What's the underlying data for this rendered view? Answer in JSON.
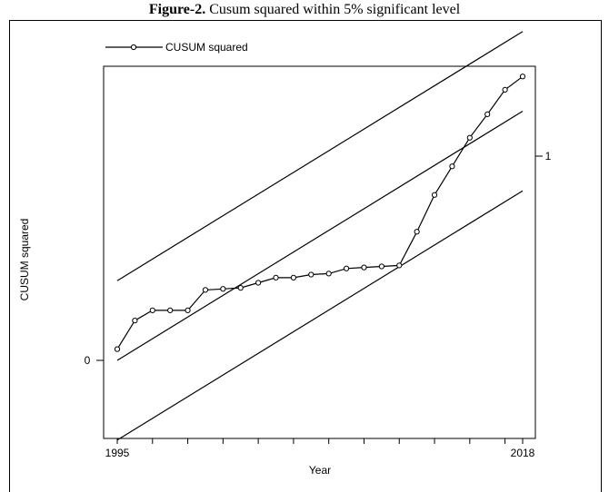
{
  "caption": {
    "prefix": "Figure-2.",
    "text": " Cusum squared within 5% significant level"
  },
  "chart_data": {
    "type": "line",
    "title": "Figure-2. Cusum squared within 5% significant level",
    "xlabel": "Year",
    "ylabel": "CUSUM squared",
    "xlim": [
      1995,
      2018
    ],
    "ylim": [
      -0.36,
      1.58
    ],
    "x_ticks": [
      1995,
      1997,
      1999,
      2001,
      2003,
      2005,
      2007,
      2009,
      2011,
      2013,
      2015,
      2017,
      2018
    ],
    "x_tick_labels": [
      "1995",
      "2018"
    ],
    "y_ticks_left": [
      0
    ],
    "y_ticks_right": [
      1
    ],
    "y_tick_labels_left": [
      "0"
    ],
    "y_tick_labels_right": [
      "1"
    ],
    "legend": {
      "entry": "CUSUM squared",
      "position": "top-left"
    },
    "series": [
      {
        "name": "CUSUM squared",
        "x": [
          1995,
          1996,
          1997,
          1998,
          1999,
          2000,
          2001,
          2002,
          2003,
          2004,
          2005,
          2006,
          2007,
          2008,
          2009,
          2010,
          2011,
          2012,
          2013,
          2014,
          2015,
          2016,
          2017,
          2018
        ],
        "values": [
          0.055,
          0.195,
          0.245,
          0.245,
          0.245,
          0.345,
          0.35,
          0.355,
          0.38,
          0.405,
          0.405,
          0.42,
          0.425,
          0.45,
          0.455,
          0.46,
          0.465,
          0.63,
          0.81,
          0.95,
          1.09,
          1.205,
          1.325,
          1.39
        ]
      }
    ],
    "bounds": [
      {
        "role": "upper",
        "start": 0.39,
        "end": 1.61
      },
      {
        "role": "center",
        "start": 0.0,
        "end": 1.22
      },
      {
        "role": "lower",
        "start": -0.39,
        "end": 0.83
      }
    ]
  }
}
